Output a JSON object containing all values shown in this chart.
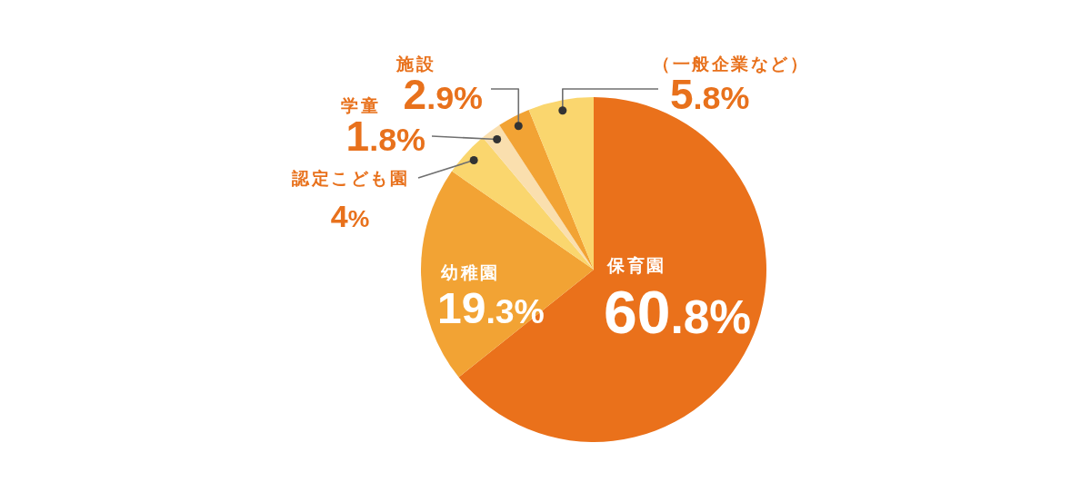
{
  "chart_data": {
    "type": "pie",
    "categories": [
      "保育園",
      "幼稚園",
      "認定こども園",
      "学童",
      "施設",
      "（一般企業など）"
    ],
    "values": [
      60.8,
      19.3,
      4,
      1.8,
      2.9,
      5.8
    ],
    "colors": [
      "#ea711b",
      "#f2a334",
      "#fad66e",
      "#fadfae",
      "#f2a334",
      "#fad66e"
    ],
    "value_labels": [
      "60.8%",
      "19.3%",
      "4%",
      "1.8%",
      "2.9%",
      "5.8%"
    ]
  }
}
